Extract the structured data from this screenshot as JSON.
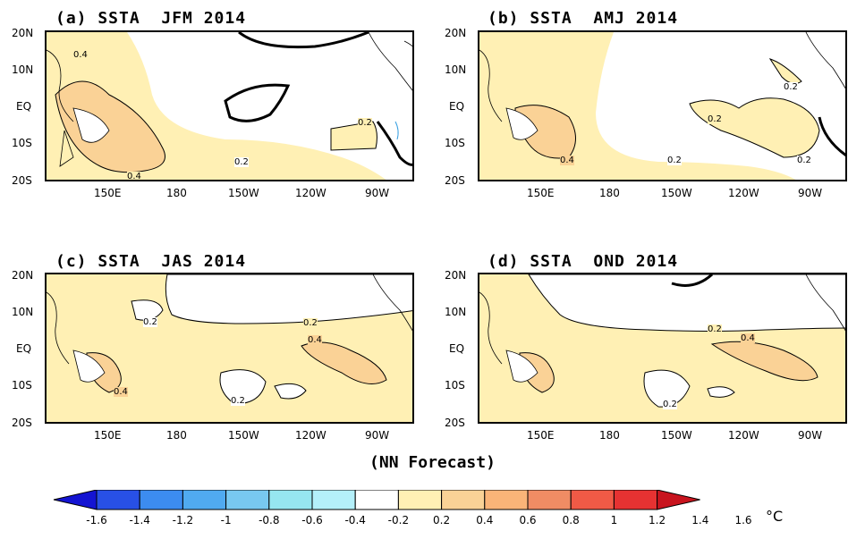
{
  "panels": [
    {
      "title": "(a) SSTA  JFM 2014",
      "contours": [
        "0.4",
        "0.4",
        "0.2",
        "0.2"
      ]
    },
    {
      "title": "(b) SSTA  AMJ 2014",
      "contours": [
        "0.2",
        "0.2",
        "0.4",
        "0.2",
        "0.2"
      ]
    },
    {
      "title": "(c) SSTA  JAS 2014",
      "contours": [
        "0.2",
        "0.2",
        "0.4",
        "0.4",
        "0.2"
      ]
    },
    {
      "title": "(d) SSTA  OND 2014",
      "contours": [
        "0.2",
        "0.4",
        "0.2"
      ]
    }
  ],
  "axes": {
    "lat_labels": [
      "20N",
      "10N",
      "EQ",
      "10S",
      "20S"
    ],
    "lon_labels": [
      "150E",
      "180",
      "150W",
      "120W",
      "90W"
    ]
  },
  "footer": "(NN Forecast)",
  "colorbar": {
    "unit": "°C",
    "labels": [
      "-1.6",
      "-1.4",
      "-1.2",
      "-1",
      "-0.8",
      "-0.6",
      "-0.4",
      "-0.2",
      "0.2",
      "0.4",
      "0.6",
      "0.8",
      "1",
      "1.2",
      "1.4",
      "1.6"
    ],
    "colors": [
      "#1414d2",
      "#2850e6",
      "#3c8cf0",
      "#50aaf0",
      "#78c8f0",
      "#96e6f0",
      "#b4f0fa",
      "#ffffff",
      "#fff0b4",
      "#fad296",
      "#fab478",
      "#f08c64",
      "#f05a46",
      "#e63232",
      "#c8141e"
    ]
  },
  "legend_colors": {
    "pos_0_2": "#fff0b4",
    "pos_0_4": "#fad296",
    "neg_line": "#000000"
  }
}
